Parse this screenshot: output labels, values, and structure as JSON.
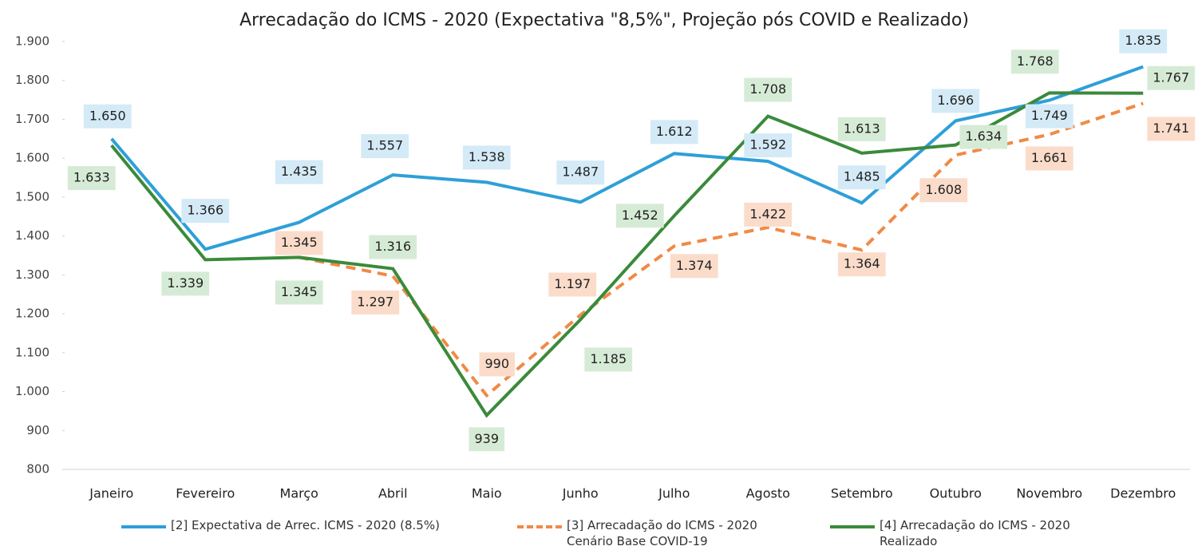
{
  "chart_data": {
    "type": "line",
    "title": "Arrecadação do ICMS - 2020 (Expectativa \"8,5%\", Projeção pós COVID e Realizado)",
    "categories": [
      "Janeiro",
      "Fevereiro",
      "Março",
      "Abril",
      "Maio",
      "Junho",
      "Julho",
      "Agosto",
      "Setembro",
      "Outubro",
      "Novembro",
      "Dezembro"
    ],
    "series": [
      {
        "name": "[2] Expectativa de Arrec. ICMS - 2020 (8.5%)",
        "color": "#2e9fd8",
        "dash": false,
        "values": [
          1650,
          1366,
          1435,
          1557,
          1538,
          1487,
          1612,
          1592,
          1485,
          1696,
          1749,
          1835
        ],
        "value_labels": [
          "1.650",
          "1.366",
          "1.435",
          "1.557",
          "1.538",
          "1.487",
          "1.612",
          "1.592",
          "1.485",
          "1.696",
          "1.749",
          "1.835"
        ]
      },
      {
        "name": "[3] Arrecadação do ICMS - 2020 Cenário Base COVID-19",
        "color": "#f08a45",
        "dash": true,
        "values": [
          null,
          null,
          1345,
          1297,
          990,
          1197,
          1374,
          1422,
          1364,
          1608,
          1661,
          1741
        ],
        "value_labels": [
          null,
          null,
          "1.345",
          "1.297",
          "990",
          "1.197",
          "1.374",
          "1.422",
          "1.364",
          "1.608",
          "1.661",
          "1.741"
        ]
      },
      {
        "name": "[4] Arrecadação do ICMS - 2020 Realizado",
        "color": "#3a8a3a",
        "dash": false,
        "values": [
          1633,
          1339,
          1345,
          1316,
          939,
          1185,
          1452,
          1708,
          1613,
          1634,
          1768,
          1767
        ],
        "value_labels": [
          "1.633",
          "1.339",
          "1.345",
          "1.316",
          "939",
          "1.185",
          "1.452",
          "1.708",
          "1.613",
          "1.634",
          "1.768",
          "1.767"
        ]
      }
    ],
    "ylim": [
      800,
      1900
    ],
    "yticks": [
      800,
      900,
      {
        "value": 1000,
        "label": "1.000"
      },
      {
        "value": 1100,
        "label": "1.100"
      },
      {
        "value": 1200,
        "label": "1.200"
      },
      {
        "value": 1300,
        "label": "1.300"
      },
      {
        "value": 1400,
        "label": "1.400"
      },
      {
        "value": 1500,
        "label": "1.500"
      },
      {
        "value": 1600,
        "label": "1.600"
      },
      {
        "value": 1700,
        "label": "1.700"
      },
      {
        "value": 1800,
        "label": "1.800"
      },
      {
        "value": 1900,
        "label": "1.900"
      }
    ],
    "grid": false,
    "legend": "bottom"
  }
}
